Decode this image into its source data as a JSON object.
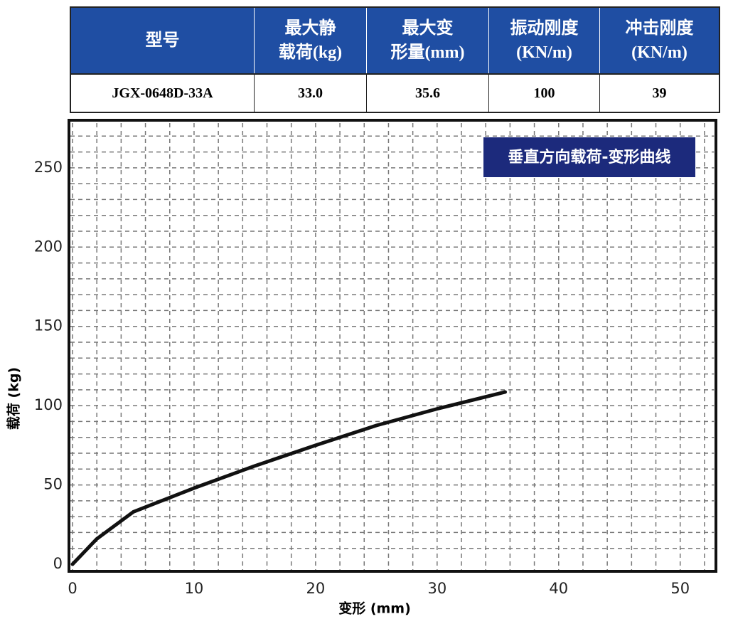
{
  "table": {
    "header": [
      [
        "型号"
      ],
      [
        "最大静",
        "载荷(kg)"
      ],
      [
        "最大变",
        "形量(mm)"
      ],
      [
        "振动刚度",
        "(KN/m)"
      ],
      [
        "冲击刚度",
        "(KN/m)"
      ]
    ],
    "rows": [
      [
        "JGX-0648D-33A",
        "33.0",
        "35.6",
        "100",
        "39"
      ]
    ]
  },
  "chart_data": {
    "type": "line",
    "title": "垂直方向载荷-变形曲线",
    "xlabel": "变形 (mm)",
    "ylabel": "载荷 (kg)",
    "x": [
      0,
      0.5,
      1,
      2,
      5,
      10,
      15,
      20,
      25,
      30,
      35.6
    ],
    "values": [
      0,
      4,
      8,
      16,
      33,
      48,
      62,
      75,
      87.5,
      98,
      108.6
    ],
    "color": "#111111",
    "xlim": [
      0,
      53
    ],
    "ylim": [
      0,
      280
    ],
    "xticks": [
      0,
      10,
      20,
      30,
      40,
      50
    ],
    "yticks": [
      0,
      50,
      100,
      150,
      200,
      250
    ],
    "x_grid": [
      0,
      2,
      4,
      6,
      8,
      10,
      12,
      14,
      16,
      18,
      20,
      22,
      24,
      26,
      28,
      30,
      32,
      34,
      36,
      38,
      40,
      42,
      44,
      46,
      48,
      50,
      52
    ],
    "y_grid": [
      10,
      20,
      30,
      40,
      50,
      60,
      70,
      80,
      90,
      100,
      110,
      120,
      130,
      140,
      150,
      160,
      170,
      180,
      190,
      200,
      210,
      220,
      230,
      240,
      250,
      260,
      270
    ],
    "grid": true
  }
}
